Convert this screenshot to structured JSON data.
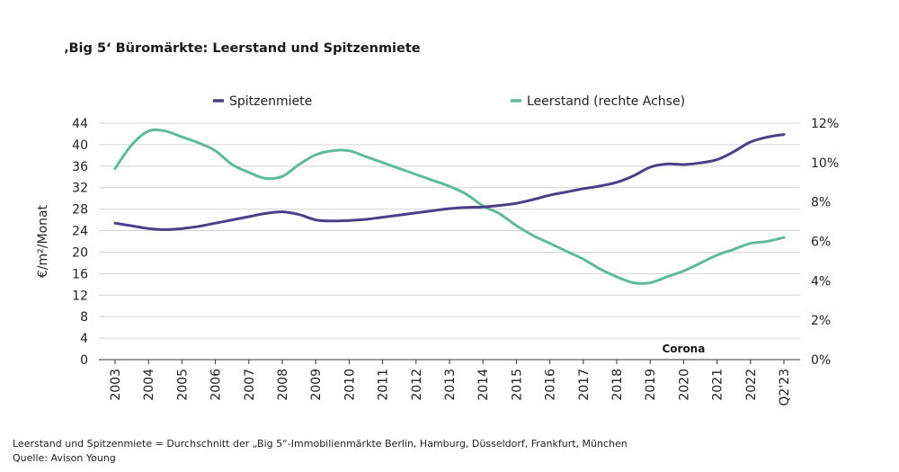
{
  "title": "‚Big 5‘ Büromärkte: Leerstand und Spitzenmiete",
  "footnote_1": "Leerstand und Spitzenmiete = Durchschnitt der „Big 5“-Immobilienmärkte Berlin, Hamburg, Düsseldorf, Frankfurt, München",
  "footnote_2": "Quelle: Avison Young",
  "colors": {
    "spitzenmiete": "#4b3f88",
    "leerstand": "#5dbb9a",
    "grid": "#d4d4d4",
    "axis": "#333333"
  },
  "chart_data": {
    "type": "line",
    "title": "‚Big 5‘ Büromärkte: Leerstand und Spitzenmiete",
    "xlabel": "",
    "ylabel": "€/m²/Monat",
    "y2label": "",
    "ylim": [
      0,
      44
    ],
    "y2lim": [
      0,
      12
    ],
    "yticks": [
      0,
      4,
      8,
      12,
      16,
      20,
      24,
      28,
      32,
      36,
      40,
      44
    ],
    "y2ticks": [
      "0%",
      "2%",
      "4%",
      "6%",
      "8%",
      "10%",
      "12%"
    ],
    "y2tick_values": [
      0,
      2,
      4,
      6,
      8,
      10,
      12
    ],
    "categories": [
      "2003",
      "2004",
      "2005",
      "2006",
      "2007",
      "2008",
      "2009",
      "2010",
      "2011",
      "2012",
      "2013",
      "2014",
      "2015",
      "2016",
      "2017",
      "2018",
      "2019",
      "2020",
      "2021",
      "2022",
      "Q2'23"
    ],
    "grid": true,
    "legend_position": "top",
    "annotation": "Corona",
    "series": [
      {
        "name": "Spitzenmiete",
        "axis": "left",
        "x": [
          2003,
          2003.5,
          2004,
          2004.5,
          2005,
          2005.5,
          2006,
          2006.5,
          2007,
          2007.5,
          2008,
          2008.5,
          2009,
          2009.5,
          2010,
          2010.5,
          2011,
          2011.5,
          2012,
          2012.5,
          2013,
          2013.5,
          2014,
          2014.5,
          2015,
          2015.5,
          2016,
          2016.5,
          2017,
          2017.5,
          2018,
          2018.5,
          2019,
          2019.5,
          2020,
          2020.5,
          2021,
          2021.5,
          2022,
          2022.5,
          2023
        ],
        "values": [
          25.4,
          24.9,
          24.4,
          24.2,
          24.4,
          24.8,
          25.4,
          26.0,
          26.6,
          27.2,
          27.5,
          27.0,
          26.0,
          25.8,
          25.9,
          26.1,
          26.5,
          26.9,
          27.3,
          27.7,
          28.1,
          28.3,
          28.4,
          28.7,
          29.1,
          29.8,
          30.6,
          31.2,
          31.8,
          32.3,
          33.0,
          34.2,
          35.8,
          36.4,
          36.3,
          36.6,
          37.2,
          38.7,
          40.5,
          41.4,
          41.9
        ]
      },
      {
        "name": "Leerstand (rechte Achse)",
        "axis": "right",
        "x": [
          2003,
          2003.5,
          2004,
          2004.5,
          2005,
          2005.5,
          2006,
          2006.5,
          2007,
          2007.5,
          2008,
          2008.5,
          2009,
          2009.5,
          2010,
          2010.5,
          2011,
          2011.5,
          2012,
          2012.5,
          2013,
          2013.5,
          2014,
          2014.5,
          2015,
          2015.5,
          2016,
          2016.5,
          2017,
          2017.5,
          2018,
          2018.5,
          2019,
          2019.5,
          2020,
          2020.5,
          2021,
          2021.5,
          2022,
          2022.5,
          2023
        ],
        "values": [
          9.7,
          10.9,
          11.6,
          11.6,
          11.3,
          11.0,
          10.6,
          9.9,
          9.5,
          9.2,
          9.3,
          9.9,
          10.4,
          10.6,
          10.6,
          10.3,
          10.0,
          9.7,
          9.4,
          9.1,
          8.8,
          8.4,
          7.8,
          7.4,
          6.8,
          6.3,
          5.9,
          5.5,
          5.1,
          4.6,
          4.2,
          3.9,
          3.9,
          4.2,
          4.5,
          4.9,
          5.3,
          5.6,
          5.9,
          6.0,
          6.2
        ]
      }
    ]
  }
}
